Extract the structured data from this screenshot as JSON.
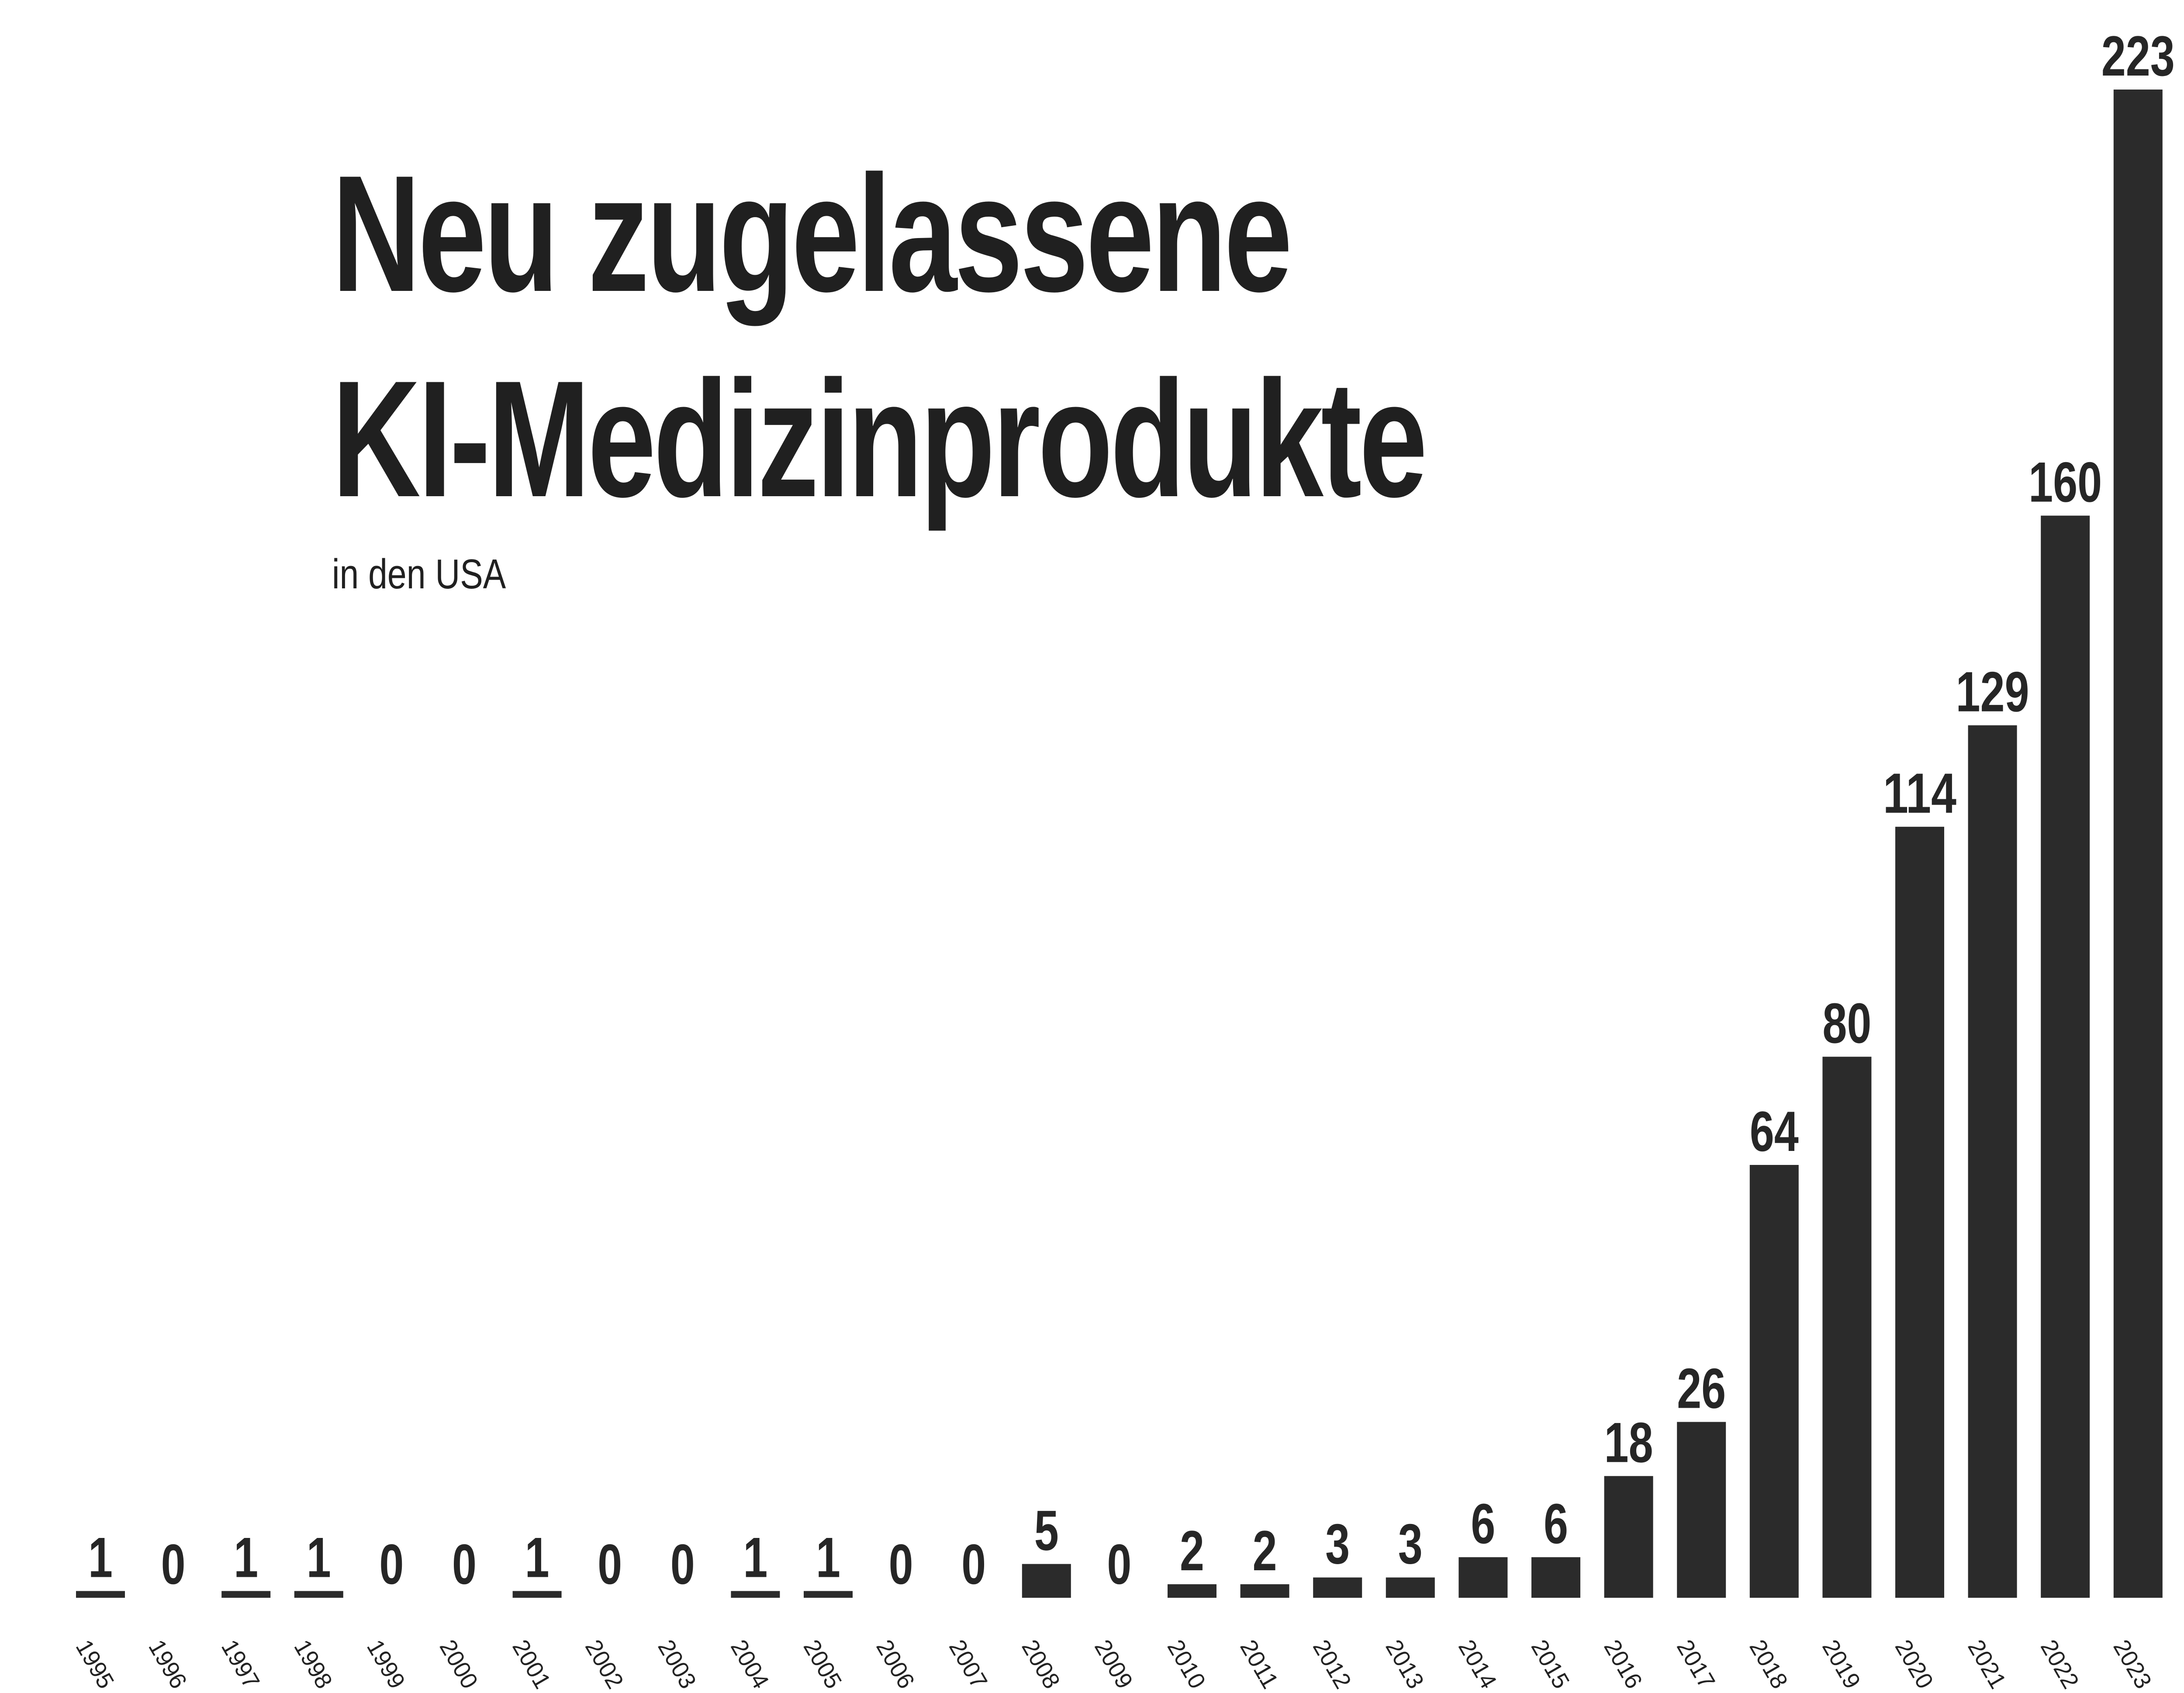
{
  "chart_data": {
    "type": "bar",
    "title": "Neu zugelassene KI-Medizinprodukte",
    "title_lines": [
      "Neu zugelassene",
      "KI-Medizinprodukte"
    ],
    "subtitle": "in den USA",
    "categories": [
      "1995",
      "1996",
      "1997",
      "1998",
      "1999",
      "2000",
      "2001",
      "2002",
      "2003",
      "2004",
      "2005",
      "2006",
      "2007",
      "2008",
      "2009",
      "2010",
      "2011",
      "2012",
      "2013",
      "2014",
      "2015",
      "2016",
      "2017",
      "2018",
      "2019",
      "2020",
      "2021",
      "2022",
      "2023"
    ],
    "values": [
      1,
      0,
      1,
      1,
      0,
      0,
      1,
      0,
      0,
      1,
      1,
      0,
      0,
      5,
      0,
      2,
      2,
      3,
      3,
      6,
      6,
      18,
      26,
      64,
      80,
      114,
      129,
      160,
      223
    ],
    "xlabel": "",
    "ylabel": "",
    "ylim": [
      0,
      223
    ],
    "grid": false,
    "legend": "none",
    "bar_color": "#2b2b2b",
    "text_color": "#202020",
    "background": "#ffffff"
  }
}
